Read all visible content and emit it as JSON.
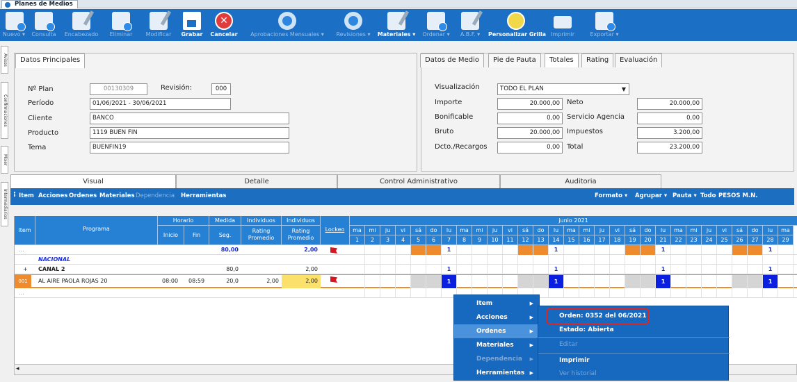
{
  "window": {
    "title": "Planes de Medios"
  },
  "toolbar": {
    "items": [
      {
        "label": "Nuevo ▾",
        "icon": "new-doc-icon",
        "enabled": false
      },
      {
        "label": "Consulta",
        "icon": "query-doc-icon",
        "enabled": false
      },
      {
        "label": "Encabezado",
        "icon": "header-edit-icon",
        "enabled": false
      },
      {
        "label": "Eliminar",
        "icon": "delete-doc-icon",
        "enabled": false
      },
      {
        "label": "Modificar",
        "icon": "modify-doc-icon",
        "enabled": false
      },
      {
        "label": "Grabar",
        "icon": "save-icon",
        "enabled": true
      },
      {
        "label": "Cancelar",
        "icon": "cancel-icon",
        "enabled": true
      },
      {
        "label": "Aprobaciones Mensuales ▾",
        "icon": "approvals-icon",
        "enabled": false
      },
      {
        "label": "Revisiones ▾",
        "icon": "revisions-icon",
        "enabled": false
      },
      {
        "label": "Materiales ▾",
        "icon": "materials-icon",
        "enabled": true
      },
      {
        "label": "Ordenar ▾",
        "icon": "sort-icon",
        "enabled": false
      },
      {
        "label": "A.B.F. ▾",
        "icon": "abf-icon",
        "enabled": false
      },
      {
        "label": "Personalizar Grilla",
        "icon": "customize-grid-icon",
        "enabled": true
      },
      {
        "label": "Imprimir",
        "icon": "printer-icon",
        "enabled": false
      },
      {
        "label": "Exportar ▾",
        "icon": "export-icon",
        "enabled": false
      }
    ]
  },
  "side_tabs": [
    "Avisos",
    "Confirmaciones",
    "Mixer",
    "Intermediarios"
  ],
  "datos_principales": {
    "tab": "Datos Principales",
    "nro_plan_label": "Nº Plan",
    "nro_plan": "00130309",
    "revision_label": "Revisión:",
    "revision": "000",
    "periodo_label": "Período",
    "periodo": "01/06/2021 - 30/06/2021",
    "cliente_label": "Cliente",
    "cliente": "BANCO",
    "producto_label": "Producto",
    "producto": "1119 BUEN FIN",
    "tema_label": "Tema",
    "tema": "BUENFIN19"
  },
  "totales": {
    "tabs": [
      "Datos de Medio",
      "Pie de Pauta",
      "Totales",
      "Rating",
      "Evaluación"
    ],
    "active_tab": "Totales",
    "visualizacion_label": "Visualización",
    "visualizacion": "TODO EL PLAN",
    "importe_label": "Importe",
    "importe": "20.000,00",
    "neto_label": "Neto",
    "neto": "20.000,00",
    "bonificable_label": "Bonificable",
    "bonificable": "0,00",
    "servicio_label": "Servicio Agencia",
    "servicio": "0,00",
    "bruto_label": "Bruto",
    "bruto": "20.000,00",
    "impuestos_label": "Impuestos",
    "impuestos": "3.200,00",
    "dcto_label": "Dcto./Recargos",
    "dcto": "0,00",
    "total_label": "Total",
    "total": "23.200,00"
  },
  "main_tabs": [
    "Visual",
    "Detalle",
    "Control Administrativo",
    "Auditoria"
  ],
  "menubar": {
    "left": [
      {
        "label": "Item",
        "enabled": true
      },
      {
        "label": "Acciones",
        "enabled": true
      },
      {
        "label": "Ordenes",
        "enabled": true
      },
      {
        "label": "Materiales",
        "enabled": true
      },
      {
        "label": "Dependencia",
        "enabled": false
      },
      {
        "label": "Herramientas",
        "enabled": true
      }
    ],
    "right": [
      "Formato ▾",
      "Agrupar ▾",
      "Pauta ▾",
      "Todo",
      "PESOS M.N."
    ]
  },
  "grid": {
    "headers": {
      "item": "Item",
      "programa": "Programa",
      "horario": "Horario",
      "inicio": "Inicio",
      "fin": "Fin",
      "medida": "Medida",
      "seg": "Seg.",
      "individuos1": "Individuos",
      "rating1": "Rating Promedio",
      "individuos2": "Individuos",
      "rating2": "Rating Promedio",
      "lockeo": "Lockeo",
      "month": "junio 2021"
    },
    "weekdays": [
      "ma",
      "mi",
      "ju",
      "vi",
      "sá",
      "do",
      "lu",
      "ma",
      "mi",
      "ju",
      "vi",
      "sá",
      "do",
      "lu",
      "ma",
      "mi",
      "ju",
      "vi",
      "sá",
      "do",
      "lu",
      "ma",
      "mi",
      "ju",
      "vi",
      "sá",
      "do",
      "lu",
      "ma"
    ],
    "days": [
      "1",
      "2",
      "3",
      "4",
      "5",
      "6",
      "7",
      "8",
      "9",
      "10",
      "11",
      "12",
      "13",
      "14",
      "15",
      "16",
      "17",
      "18",
      "19",
      "20",
      "21",
      "22",
      "23",
      "24",
      "25",
      "26",
      "27",
      "28",
      "29"
    ],
    "rows": [
      {
        "item": "...",
        "programa": "",
        "seg": "80,00",
        "rating2": "2,00"
      },
      {
        "item": "",
        "programa": "NACIONAL"
      },
      {
        "item": "+",
        "programa": "CANAL 2",
        "seg": "80,0",
        "rating2": "2,00"
      },
      {
        "item": "001",
        "programa": "AL AIRE PAOLA ROJAS 20",
        "inicio": "08:00",
        "fin": "08:59",
        "seg": "20,0",
        "rating1": "2,00",
        "rating2": "2,00"
      },
      {
        "item": "...",
        "programa": ""
      }
    ],
    "day_marks": {
      "row0": "1",
      "row2": "1",
      "row3": "1"
    }
  },
  "context_menu": {
    "items": [
      {
        "label": "Item",
        "enabled": true
      },
      {
        "label": "Acciones",
        "enabled": true
      },
      {
        "label": "Ordenes",
        "enabled": true
      },
      {
        "label": "Materiales",
        "enabled": true
      },
      {
        "label": "Dependencia",
        "enabled": false
      },
      {
        "label": "Herramientas",
        "enabled": true
      }
    ],
    "selected": "Ordenes"
  },
  "submenu": {
    "items": [
      {
        "label": "Orden: 0352 del 06/2021",
        "enabled": true
      },
      {
        "label": "Estado: Abierta",
        "enabled": true
      },
      {
        "label": "Editar",
        "enabled": false
      },
      {
        "label": "Imprimir",
        "enabled": true
      },
      {
        "label": "Ver historial",
        "enabled": false
      }
    ]
  },
  "colors": {
    "toolbar": "#1b6fc4",
    "header": "#2680d4",
    "weekend": "#ee8b2f",
    "selected_day": "#0a1fe0",
    "highlight": "#e02525"
  }
}
